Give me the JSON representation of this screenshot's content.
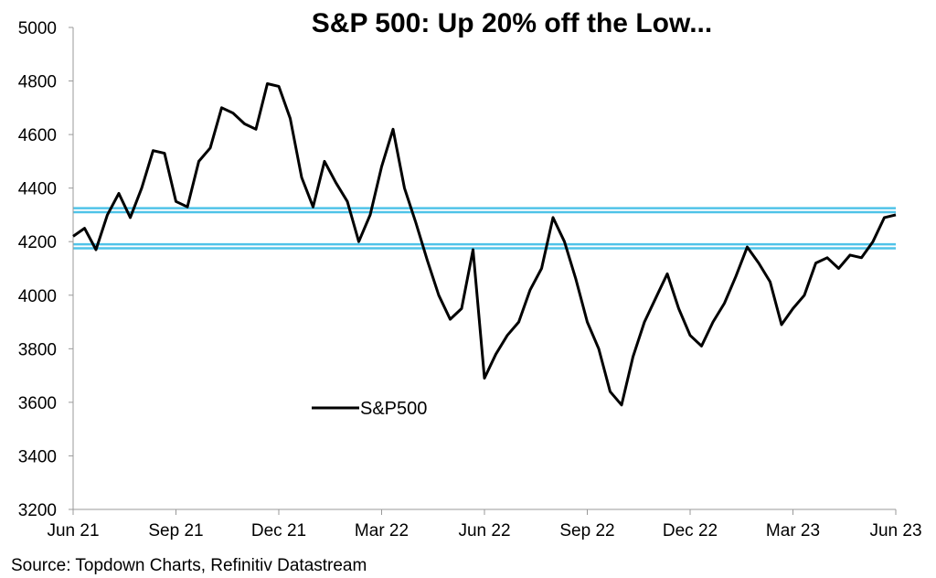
{
  "chart_data": {
    "type": "line",
    "title": "S&P 500: Up 20% off the Low...",
    "source": "Source: Topdown Charts, Refinitiv Datastream",
    "ylim": [
      3200,
      5000
    ],
    "yticks": [
      3200,
      3400,
      3600,
      3800,
      4000,
      4200,
      4400,
      4600,
      4800,
      5000
    ],
    "xticks": [
      "Jun 21",
      "Sep 21",
      "Dec 21",
      "Mar 22",
      "Jun 22",
      "Sep 22",
      "Dec 22",
      "Mar 23",
      "Jun 23"
    ],
    "grid": false,
    "legend": "center-left",
    "colors": {
      "series": "#000000",
      "bands": "#4FC3E8"
    },
    "reference_bands": [
      {
        "upper": 4325,
        "lower": 4310
      },
      {
        "upper": 4190,
        "lower": 4175
      }
    ],
    "series": [
      {
        "name": "S&P500",
        "x": [
          "Jun 21",
          "Jul 21",
          "Jul 21",
          "Jul 21",
          "Aug 21",
          "Aug 21",
          "Aug 21",
          "Sep 21",
          "Sep 21",
          "Sep 21",
          "Oct 21",
          "Oct 21",
          "Oct 21",
          "Nov 21",
          "Nov 21",
          "Nov 21",
          "Dec 21",
          "Dec 21",
          "Dec 21",
          "Jan 22",
          "Jan 22",
          "Jan 22",
          "Jan 22",
          "Feb 22",
          "Feb 22",
          "Feb 22",
          "Mar 22",
          "Mar 22",
          "Mar 22",
          "Apr 22",
          "Apr 22",
          "Apr 22",
          "May 22",
          "May 22",
          "May 22",
          "Jun 22",
          "Jun 22",
          "Jun 22",
          "Jul 22",
          "Jul 22",
          "Jul 22",
          "Aug 22",
          "Aug 22",
          "Aug 22",
          "Sep 22",
          "Sep 22",
          "Sep 22",
          "Oct 22",
          "Oct 22",
          "Oct 22",
          "Nov 22",
          "Nov 22",
          "Nov 22",
          "Dec 22",
          "Dec 22",
          "Dec 22",
          "Jan 23",
          "Jan 23",
          "Jan 23",
          "Feb 23",
          "Feb 23",
          "Feb 23",
          "Mar 23",
          "Mar 23",
          "Mar 23",
          "Apr 23",
          "Apr 23",
          "Apr 23",
          "May 23",
          "May 23",
          "May 23",
          "Jun 23",
          "Jun 23"
        ],
        "values": [
          4220,
          4250,
          4170,
          4300,
          4380,
          4290,
          4400,
          4540,
          4530,
          4350,
          4330,
          4500,
          4550,
          4700,
          4680,
          4640,
          4620,
          4790,
          4780,
          4660,
          4440,
          4330,
          4500,
          4420,
          4350,
          4200,
          4300,
          4480,
          4620,
          4400,
          4270,
          4130,
          4000,
          3910,
          3950,
          4170,
          3690,
          3780,
          3850,
          3900,
          4020,
          4100,
          4290,
          4200,
          4060,
          3900,
          3800,
          3640,
          3590,
          3770,
          3900,
          3990,
          4080,
          3950,
          3850,
          3810,
          3900,
          3970,
          4070,
          4180,
          4120,
          4050,
          3890,
          3950,
          4000,
          4120,
          4140,
          4100,
          4150,
          4140,
          4200,
          4290,
          4300
        ]
      }
    ]
  }
}
